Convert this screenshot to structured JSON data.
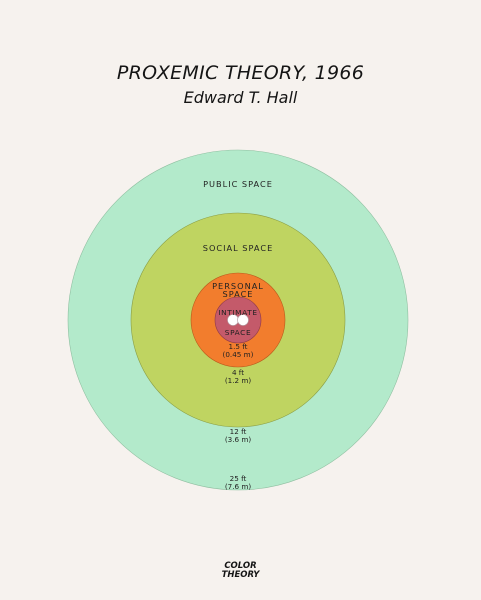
{
  "title": "PROXEMIC THEORY, 1966",
  "subtitle": "Edward T. Hall",
  "zones": {
    "public": {
      "label": "PUBLIC SPACE",
      "distance": "25 ft",
      "metric": "(7.6 m)",
      "color": "#b3eacb"
    },
    "social": {
      "label": "SOCIAL SPACE",
      "distance": "12 ft",
      "metric": "(3.6 m)",
      "color": "#bfd461"
    },
    "personal": {
      "label_line1": "PERSONAL",
      "label_line2": "SPACE",
      "distance": "4 ft",
      "metric": "(1.2 m)",
      "color": "#f27d2d"
    },
    "intimate": {
      "label_line1": "INTIMATE",
      "label_line2": "SPACE",
      "distance": "1.5 ft",
      "metric": "(0.45 m)",
      "color": "#c45a6a"
    }
  },
  "footer": {
    "line1": "COLOR",
    "line2": "THEORY"
  }
}
